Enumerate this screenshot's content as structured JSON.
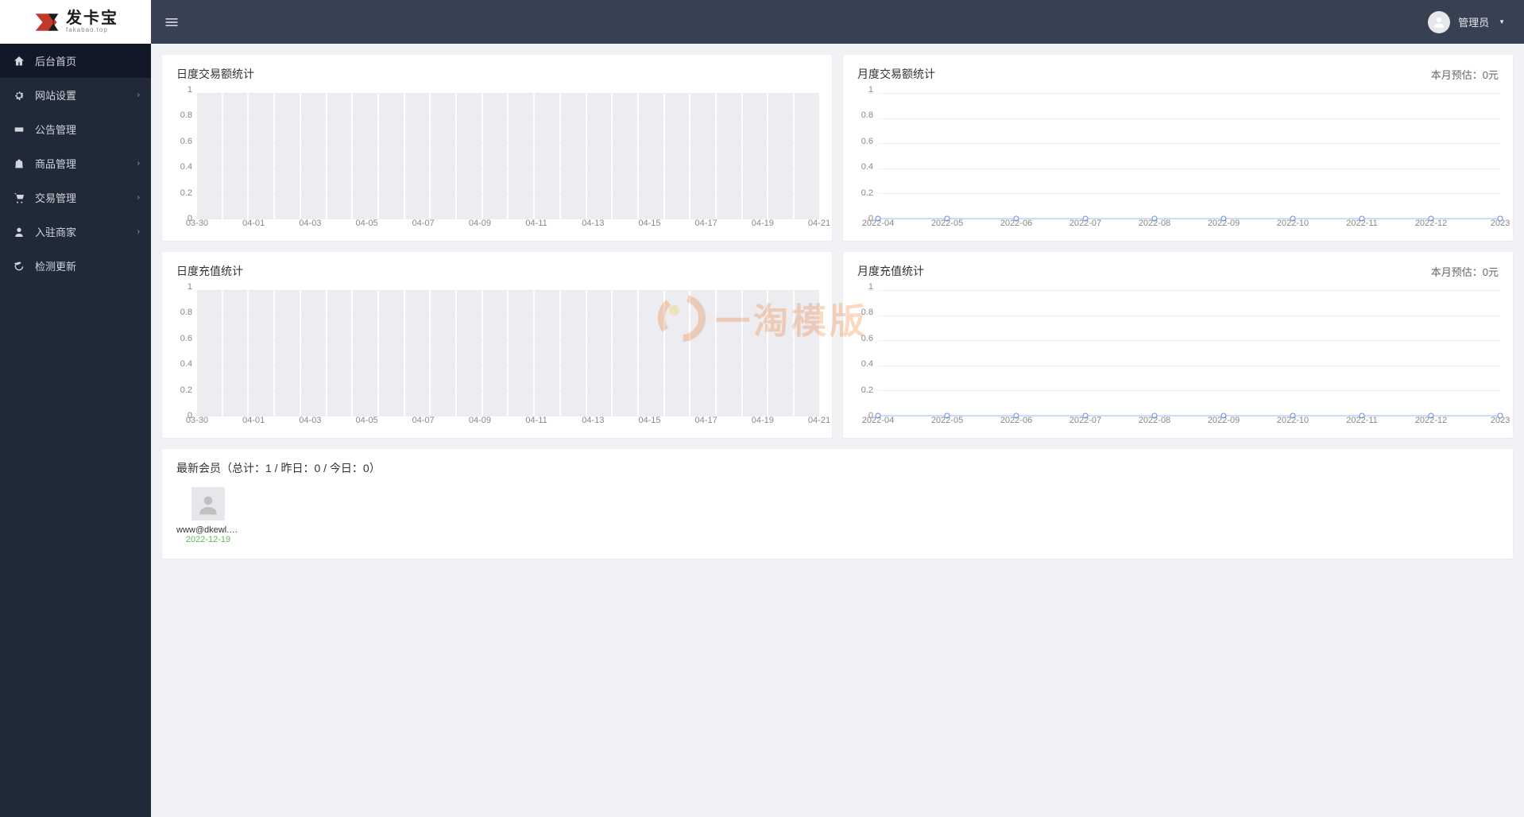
{
  "logo": {
    "cn": "发卡宝",
    "en": "fakabao.top"
  },
  "sidebar": {
    "items": [
      {
        "label": "后台首页",
        "icon": "home",
        "active": true,
        "expandable": false
      },
      {
        "label": "网站设置",
        "icon": "gear",
        "active": false,
        "expandable": true
      },
      {
        "label": "公告管理",
        "icon": "megaphone",
        "active": false,
        "expandable": false
      },
      {
        "label": "商品管理",
        "icon": "shopping-bag",
        "active": false,
        "expandable": true
      },
      {
        "label": "交易管理",
        "icon": "cart",
        "active": false,
        "expandable": true
      },
      {
        "label": "入驻商家",
        "icon": "user",
        "active": false,
        "expandable": true
      },
      {
        "label": "检测更新",
        "icon": "refresh",
        "active": false,
        "expandable": false
      }
    ]
  },
  "header": {
    "user_label": "管理员"
  },
  "charts": {
    "daily_tx": {
      "title": "日度交易额统计",
      "type": "bar",
      "ylim": [
        0,
        1
      ],
      "ytick_step": 0.2,
      "x_labels": [
        "03-30",
        "04-01",
        "04-03",
        "04-05",
        "04-07",
        "04-09",
        "04-11",
        "04-13",
        "04-15",
        "04-17",
        "04-19",
        "04-21"
      ],
      "bar_count": 24,
      "bar_value": 1,
      "bar_color": "#ececf1",
      "grid_color": "#eeeeee",
      "tick_color": "#888888"
    },
    "monthly_tx": {
      "title": "月度交易额统计",
      "extra": "本月预估：0元",
      "type": "line",
      "ylim": [
        0,
        1
      ],
      "ytick_step": 0.2,
      "x_labels": [
        "2022-04",
        "2022-05",
        "2022-06",
        "2022-07",
        "2022-08",
        "2022-09",
        "2022-10",
        "2022-11",
        "2022-12",
        "2023"
      ],
      "points_count": 10,
      "point_value": 0,
      "line_color": "#5b8ff9",
      "marker_fill": "#ffffff",
      "grid_color": "#eeeeee",
      "tick_color": "#888888"
    },
    "daily_recharge": {
      "title": "日度充值统计",
      "type": "bar",
      "ylim": [
        0,
        1
      ],
      "ytick_step": 0.2,
      "x_labels": [
        "03-30",
        "04-01",
        "04-03",
        "04-05",
        "04-07",
        "04-09",
        "04-11",
        "04-13",
        "04-15",
        "04-17",
        "04-19",
        "04-21"
      ],
      "bar_count": 24,
      "bar_value": 1,
      "bar_color": "#ececf1",
      "grid_color": "#eeeeee",
      "tick_color": "#888888"
    },
    "monthly_recharge": {
      "title": "月度充值统计",
      "extra": "本月预估：0元",
      "type": "line",
      "ylim": [
        0,
        1
      ],
      "ytick_step": 0.2,
      "x_labels": [
        "2022-04",
        "2022-05",
        "2022-06",
        "2022-07",
        "2022-08",
        "2022-09",
        "2022-10",
        "2022-11",
        "2022-12",
        "2023"
      ],
      "points_count": 10,
      "point_value": 0,
      "line_color": "#5b8ff9",
      "marker_fill": "#ffffff",
      "grid_color": "#eeeeee",
      "tick_color": "#888888"
    }
  },
  "members": {
    "title": "最新会员（总计：1 / 昨日：0 / 今日：0）",
    "items": [
      {
        "email": "www@dkewl.cor",
        "date": "2022-12-19"
      }
    ]
  },
  "watermark": {
    "text": "一淘模版"
  }
}
